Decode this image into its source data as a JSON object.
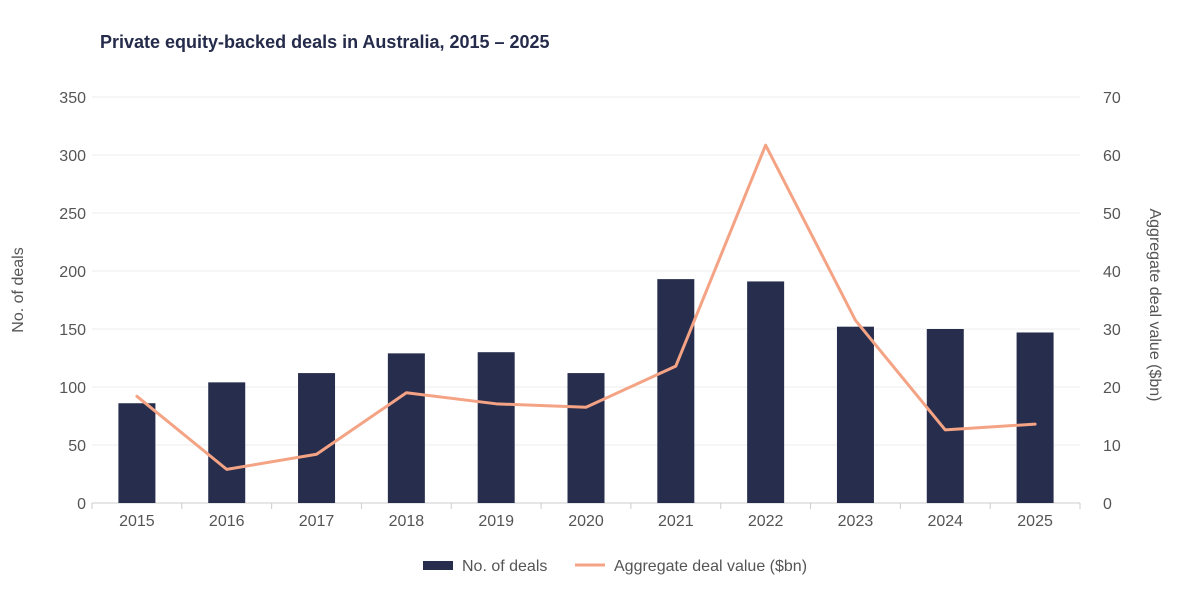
{
  "chart_data": {
    "type": "bar",
    "title": "Private equity-backed deals in Australia, 2015 – 2025",
    "categories": [
      "2015",
      "2016",
      "2017",
      "2018",
      "2019",
      "2020",
      "2021",
      "2022",
      "2023",
      "2024",
      "2025"
    ],
    "series": [
      {
        "name": "No. of deals",
        "type": "bar",
        "axis": "left",
        "color": "#272d4d",
        "values": [
          86,
          104,
          112,
          129,
          130,
          112,
          193,
          191,
          152,
          150,
          147
        ]
      },
      {
        "name": "Aggregate deal value ($bn)",
        "type": "line",
        "axis": "right",
        "color": "#f4a384",
        "values": [
          18.4,
          5.8,
          8.4,
          19.0,
          17.1,
          16.5,
          23.6,
          61.7,
          31.5,
          12.6,
          13.6
        ]
      }
    ],
    "ylabel": "No. of deals",
    "ylim": [
      0,
      350
    ],
    "yticks": [
      "0",
      "50",
      "100",
      "150",
      "200",
      "250",
      "300",
      "350"
    ],
    "y2label": "Aggregate deal value ($bn)",
    "y2lim": [
      0,
      70
    ],
    "y2ticks": [
      "0",
      "10",
      "20",
      "30",
      "40",
      "50",
      "60",
      "70"
    ],
    "grid": true,
    "legend_position": "bottom-center",
    "colors": {
      "title": "#252b4a",
      "text": "#555555",
      "grid": "#eeeeee",
      "axis": "#cccccc"
    }
  }
}
